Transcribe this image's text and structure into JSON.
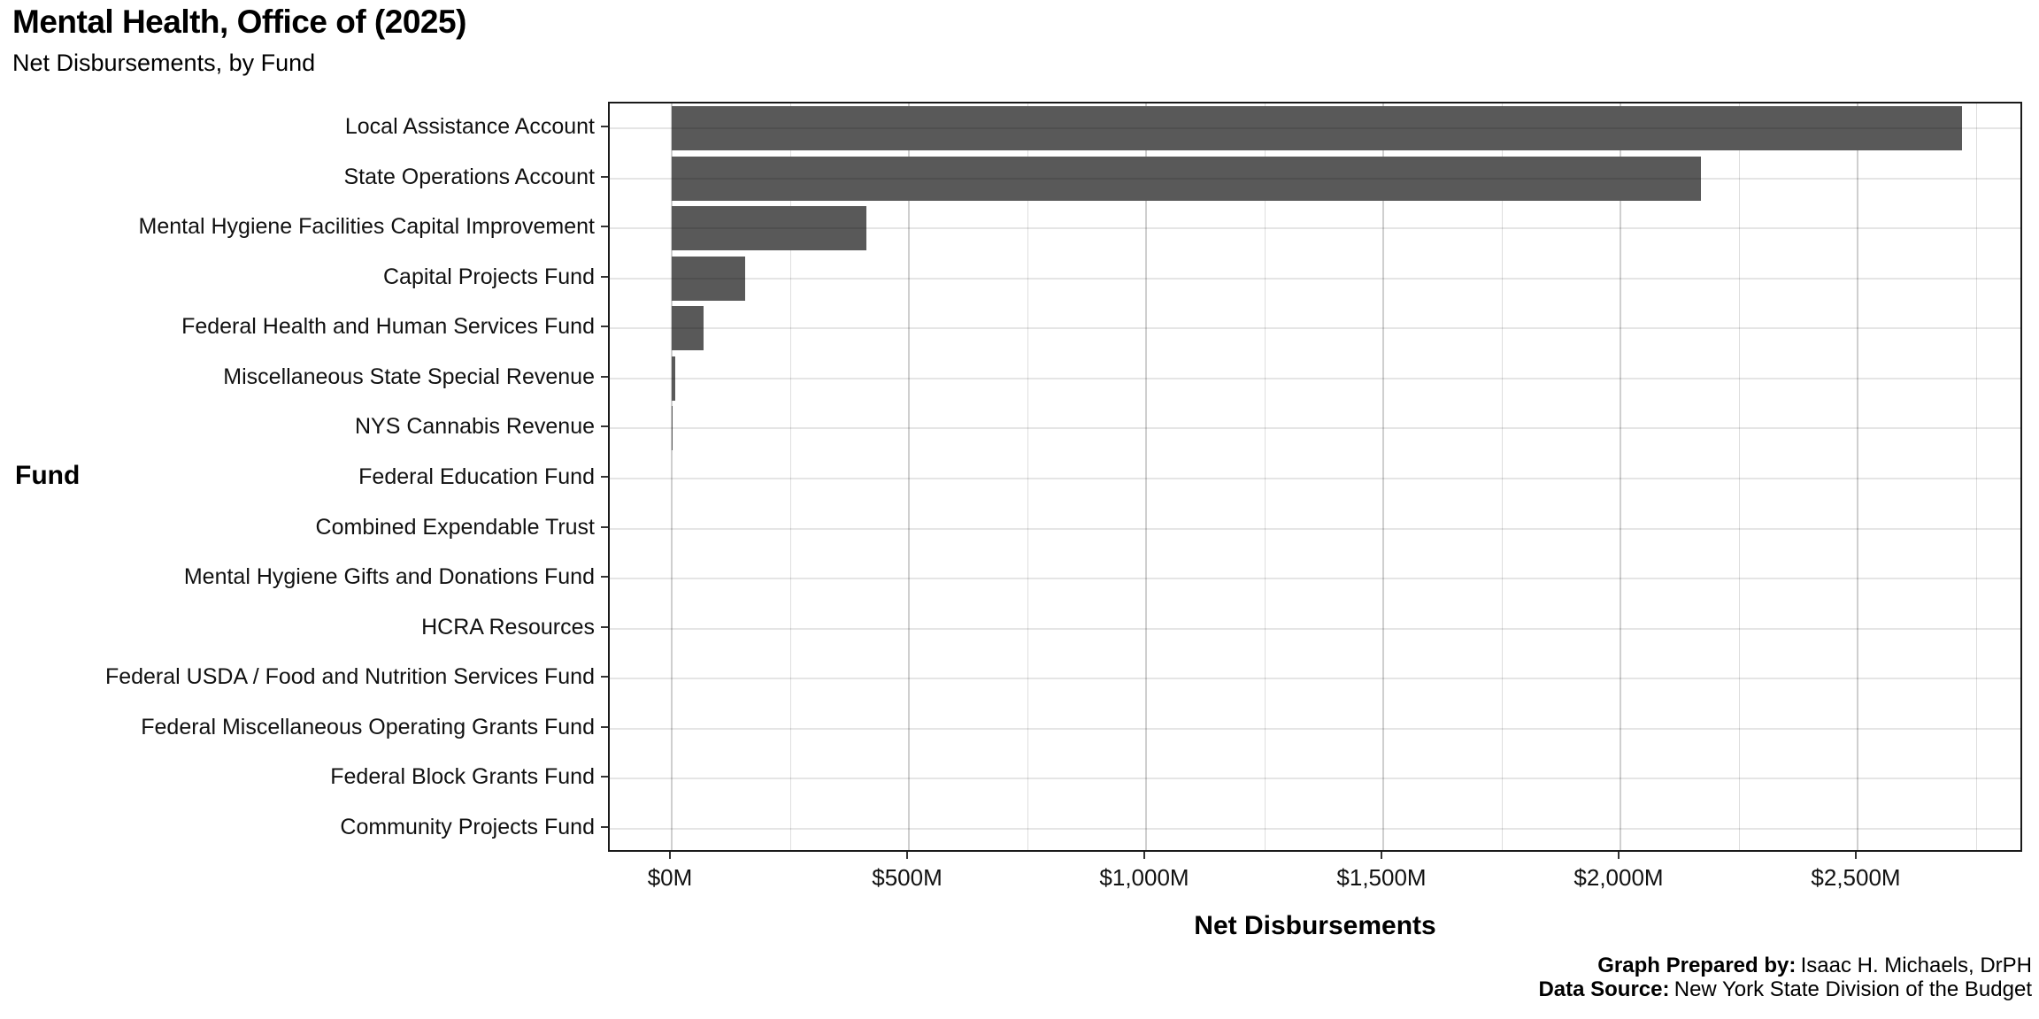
{
  "header": {
    "title": "Mental Health, Office of (2025)",
    "subtitle": "Net Disbursements, by Fund"
  },
  "footer": {
    "prepared_by_label": "Graph Prepared by:",
    "prepared_by_value": "Isaac H. Michaels, DrPH",
    "source_label": "Data Source:",
    "source_value": "New York State Division of the Budget"
  },
  "chart_data": {
    "type": "bar",
    "orientation": "horizontal",
    "title": "Mental Health, Office of (2025)",
    "subtitle": "Net Disbursements, by Fund",
    "xlabel": "Net Disbursements",
    "ylabel": "Fund",
    "value_unit": "USD millions",
    "categories": [
      "Local Assistance Account",
      "State Operations Account",
      "Mental Hygiene Facilities Capital Improvement",
      "Capital Projects Fund",
      "Federal Health and Human Services Fund",
      "Miscellaneous State Special Revenue",
      "NYS Cannabis Revenue",
      "Federal Education Fund",
      "Combined Expendable Trust",
      "Mental Hygiene Gifts and Donations Fund",
      "HCRA Resources",
      "Federal USDA / Food and Nutrition Services Fund",
      "Federal Miscellaneous Operating Grants Fund",
      "Federal Block Grants Fund",
      "Community Projects Fund"
    ],
    "values": [
      2720,
      2170,
      410,
      155,
      67,
      7,
      2,
      0,
      0,
      0,
      0,
      0,
      0,
      0,
      0
    ],
    "x_ticks": [
      {
        "value": 0,
        "label": "$0M"
      },
      {
        "value": 500,
        "label": "$500M"
      },
      {
        "value": 1000,
        "label": "$1,000M"
      },
      {
        "value": 1500,
        "label": "$1,500M"
      },
      {
        "value": 2000,
        "label": "$2,000M"
      },
      {
        "value": 2500,
        "label": "$2,500M"
      }
    ],
    "x_minor_ticks": [
      250,
      750,
      1250,
      1750,
      2250,
      2750
    ],
    "xlim": [
      -136,
      2851
    ],
    "bar_color": "#595959",
    "grid": true,
    "legend": false
  }
}
